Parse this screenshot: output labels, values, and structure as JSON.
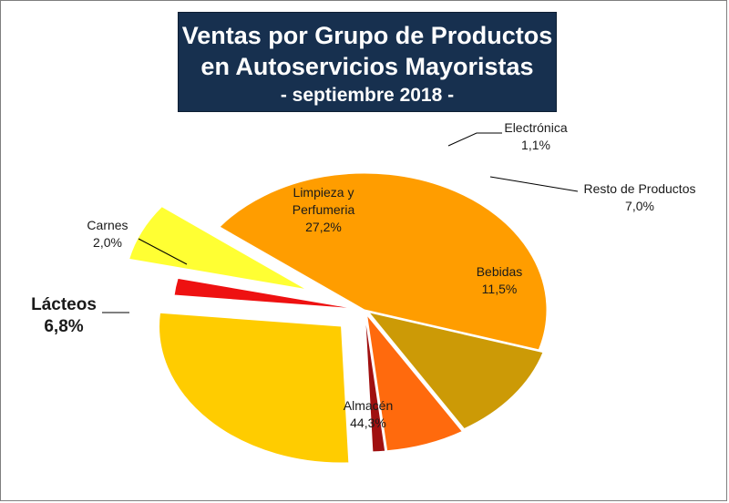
{
  "title_line1": "Ventas por Grupo de Productos",
  "title_line2": "en Autoservicios Mayoristas",
  "subtitle": "- septiembre 2018 -",
  "chart_data": {
    "type": "pie",
    "title": "Ventas por Grupo de Productos en Autoservicios Mayoristas",
    "subtitle": "- septiembre 2018 -",
    "slices": [
      {
        "label": "Almacén",
        "value": 44.3,
        "display": "44,3%",
        "color": "#ff9d00",
        "exploded": false
      },
      {
        "label": "Lácteos",
        "value": 6.8,
        "display": "6,8%",
        "color": "#ffff33",
        "exploded": true
      },
      {
        "label": "Carnes",
        "value": 2.0,
        "display": "2,0%",
        "color": "#ee1111",
        "exploded": true
      },
      {
        "label": "Limpieza y Perfumeria",
        "value": 27.2,
        "display": "27,2%",
        "color": "#ffcc00",
        "exploded": true
      },
      {
        "label": "Electrónica",
        "value": 1.1,
        "display": "1,1%",
        "color": "#a01010",
        "exploded": true
      },
      {
        "label": "Resto de Productos",
        "value": 7.0,
        "display": "7,0%",
        "color": "#ff6a0d",
        "exploded": true
      },
      {
        "label": "Bebidas",
        "value": 11.5,
        "display": "11,5%",
        "color": "#cc9a06",
        "exploded": true
      }
    ]
  }
}
